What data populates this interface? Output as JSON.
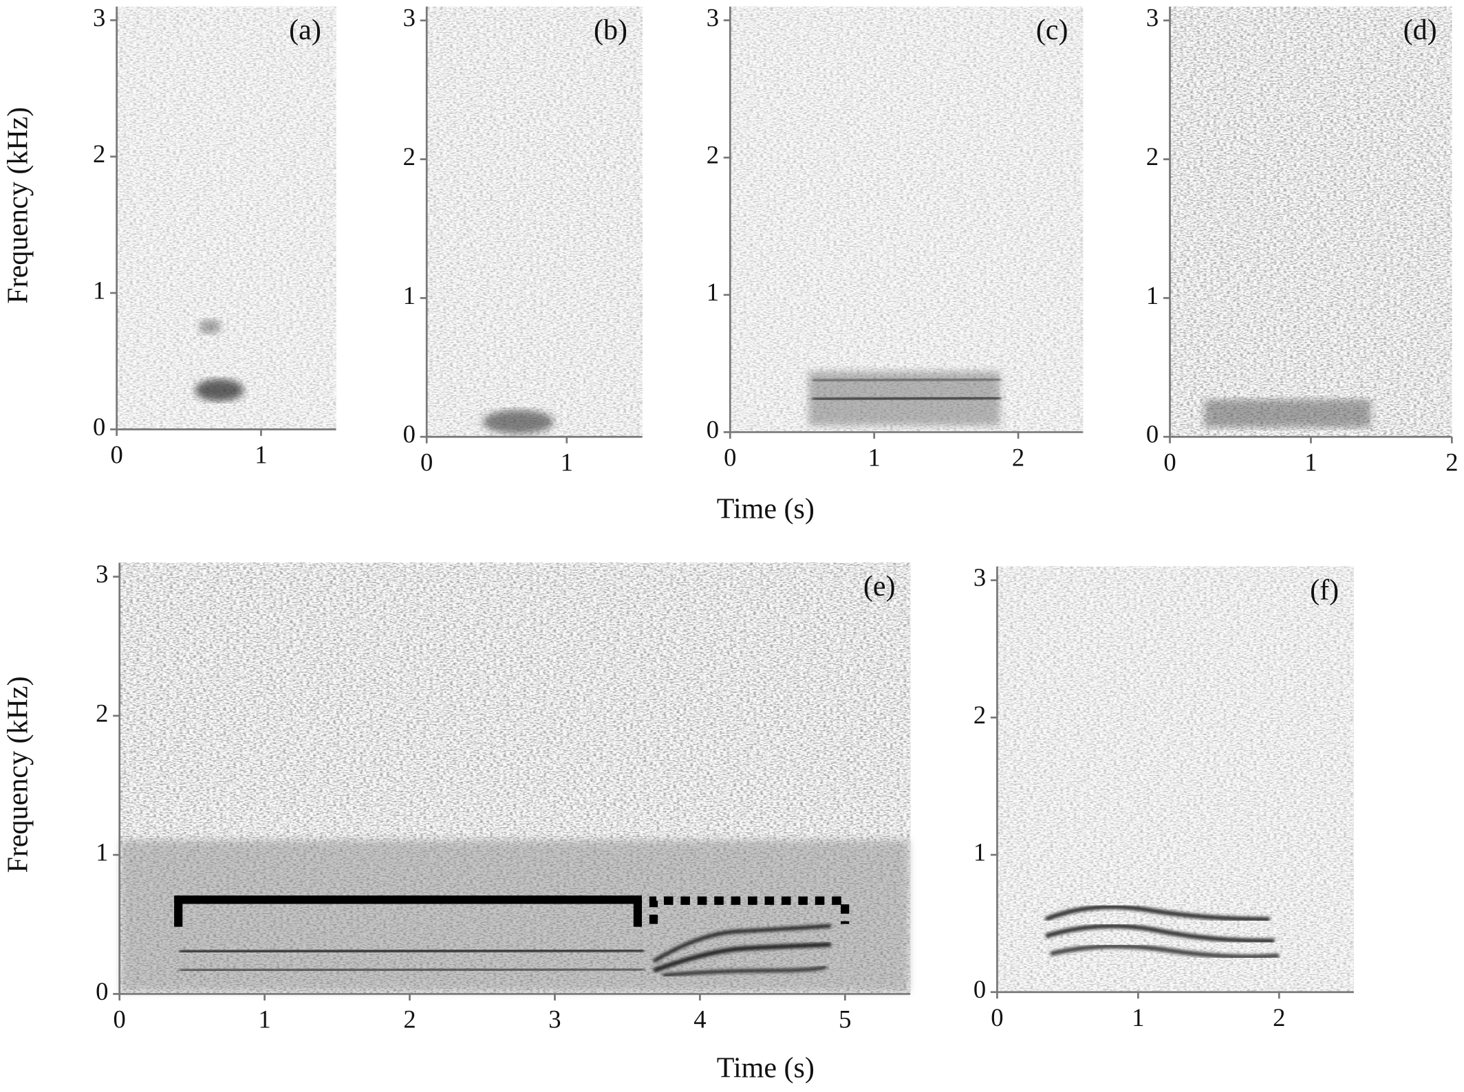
{
  "chart_data": [
    {
      "type": "spectrogram",
      "label": "(a)",
      "xlim": [
        0,
        1.52
      ],
      "ylim": [
        0,
        3.1
      ],
      "xticks": [
        0,
        1
      ],
      "yticks": [
        0,
        1,
        2,
        3
      ]
    },
    {
      "type": "spectrogram",
      "label": "(b)",
      "xlim": [
        0,
        1.54
      ],
      "ylim": [
        0,
        3.1
      ],
      "xticks": [
        0,
        1
      ],
      "yticks": [
        0,
        1,
        2,
        3
      ]
    },
    {
      "type": "spectrogram",
      "label": "(c)",
      "xlim": [
        0,
        2.45
      ],
      "ylim": [
        0,
        3.1
      ],
      "xticks": [
        0,
        1,
        2
      ],
      "yticks": [
        0,
        1,
        2,
        3
      ]
    },
    {
      "type": "spectrogram",
      "label": "(d)",
      "xlim": [
        0,
        2
      ],
      "ylim": [
        0,
        3.1
      ],
      "xticks": [
        0,
        1,
        2
      ],
      "yticks": [
        0,
        1,
        2,
        3
      ]
    },
    {
      "type": "spectrogram",
      "label": "(e)",
      "xlim": [
        0,
        5.45
      ],
      "ylim": [
        0,
        3.1
      ],
      "xticks": [
        0,
        1,
        2,
        3,
        4,
        5
      ],
      "yticks": [
        0,
        1,
        2,
        3
      ]
    },
    {
      "type": "spectrogram",
      "label": "(f)",
      "xlim": [
        0,
        2.53
      ],
      "ylim": [
        0,
        3.1
      ],
      "xticks": [
        0,
        1,
        2
      ],
      "yticks": [
        0,
        1,
        2,
        3
      ]
    }
  ],
  "rows": [
    {
      "ylabel": "Frequency (kHz)",
      "xlabel": "Time (s)"
    },
    {
      "ylabel": "Frequency (kHz)",
      "xlabel": "Time (s)"
    }
  ]
}
